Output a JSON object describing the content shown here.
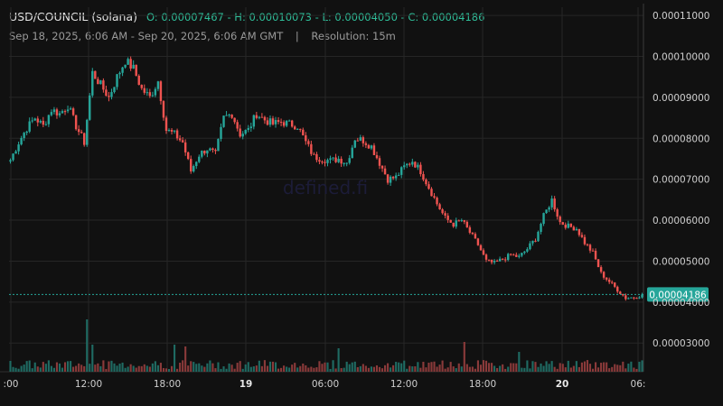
{
  "header": {
    "pair": "USD/COUNCIL (solana)",
    "ohlc": "O: 0.00007467 - H: 0.00010073 - L: 0.00004050 - C: 0.00004186",
    "range": "Sep 18, 2025, 6:06 AM - Sep 20, 2025, 6:06 AM GMT",
    "separator": "|",
    "resolution": "Resolution: 15m"
  },
  "watermark": "defined.fi",
  "colors": {
    "up": "#26a69a",
    "down": "#ef5350",
    "up_volume": "#1f6b63",
    "down_volume": "#8a3a3a",
    "last_price_badge": "#26a69a",
    "grid": "#262626",
    "background": "#111111"
  },
  "chart_data": {
    "type": "candlestick",
    "resolution": "15m",
    "last_price": 4.186e-05,
    "last_price_label": "0.00004186",
    "y_ticks": [
      "0.00011000",
      "0.00010000",
      "0.00009000",
      "0.00008000",
      "0.00007000",
      "0.00006000",
      "0.00005000",
      "0.00004000",
      "0.00003000"
    ],
    "ylim": [
      2.3e-05,
      0.000112
    ],
    "x_ticks": [
      {
        "label": ":00",
        "bold": false
      },
      {
        "label": "12:00",
        "bold": false
      },
      {
        "label": "18:00",
        "bold": false
      },
      {
        "label": "19",
        "bold": true
      },
      {
        "label": "06:00",
        "bold": false
      },
      {
        "label": "12:00",
        "bold": false
      },
      {
        "label": "18:00",
        "bold": false
      },
      {
        "label": "20",
        "bold": true
      },
      {
        "label": "06:",
        "bold": false
      }
    ],
    "price_path": [
      [
        0,
        7.47e-05
      ],
      [
        3,
        7.9e-05
      ],
      [
        6,
        8.25e-05
      ],
      [
        9,
        8.5e-05
      ],
      [
        12,
        8.3e-05
      ],
      [
        15,
        8.7e-05
      ],
      [
        18,
        8.6e-05
      ],
      [
        21,
        8.8e-05
      ],
      [
        24,
        8.3e-05
      ],
      [
        27,
        7.9e-05
      ],
      [
        30,
        9.6e-05
      ],
      [
        33,
        9.3e-05
      ],
      [
        36,
        9e-05
      ],
      [
        39,
        9.5e-05
      ],
      [
        42,
        9.9e-05
      ],
      [
        45,
        9.7e-05
      ],
      [
        48,
        9.2e-05
      ],
      [
        51,
        9e-05
      ],
      [
        54,
        9.4e-05
      ],
      [
        57,
        8.2e-05
      ],
      [
        60,
        8.1e-05
      ],
      [
        63,
        7.9e-05
      ],
      [
        66,
        7.2e-05
      ],
      [
        69,
        7.6e-05
      ],
      [
        72,
        7.75e-05
      ],
      [
        75,
        7.6e-05
      ],
      [
        78,
        8.5e-05
      ],
      [
        81,
        8.6e-05
      ],
      [
        84,
        8.1e-05
      ],
      [
        87,
        8.2e-05
      ],
      [
        90,
        8.6e-05
      ],
      [
        93,
        8.45e-05
      ],
      [
        96,
        8.35e-05
      ],
      [
        99,
        8.4e-05
      ],
      [
        102,
        8.35e-05
      ],
      [
        105,
        8.3e-05
      ],
      [
        108,
        7.9e-05
      ],
      [
        111,
        7.55e-05
      ],
      [
        114,
        7.5e-05
      ],
      [
        117,
        7.45e-05
      ],
      [
        120,
        7.5e-05
      ],
      [
        123,
        7.4e-05
      ],
      [
        126,
        8e-05
      ],
      [
        129,
        7.95e-05
      ],
      [
        132,
        7.8e-05
      ],
      [
        135,
        7.4e-05
      ],
      [
        138,
        7e-05
      ],
      [
        141,
        7.05e-05
      ],
      [
        144,
        7.3e-05
      ],
      [
        147,
        7.45e-05
      ],
      [
        150,
        7.2e-05
      ],
      [
        153,
        6.8e-05
      ],
      [
        156,
        6.4e-05
      ],
      [
        159,
        6.05e-05
      ],
      [
        162,
        5.9e-05
      ],
      [
        165,
        6e-05
      ],
      [
        168,
        5.7e-05
      ],
      [
        171,
        5.4e-05
      ],
      [
        174,
        5e-05
      ],
      [
        177,
        4.95e-05
      ],
      [
        180,
        5.05e-05
      ],
      [
        183,
        5.15e-05
      ],
      [
        186,
        5.1e-05
      ],
      [
        189,
        5.3e-05
      ],
      [
        192,
        5.55e-05
      ],
      [
        195,
        6.1e-05
      ],
      [
        198,
        6.5e-05
      ],
      [
        201,
        5.95e-05
      ],
      [
        204,
        5.85e-05
      ],
      [
        207,
        5.8e-05
      ],
      [
        210,
        5.45e-05
      ],
      [
        213,
        5.2e-05
      ],
      [
        216,
        4.7e-05
      ],
      [
        219,
        4.5e-05
      ],
      [
        222,
        4.3e-05
      ],
      [
        225,
        4.1e-05
      ],
      [
        228,
        4.12e-05
      ],
      [
        231,
        4.18e-05
      ]
    ],
    "volume_spikes": [
      [
        28,
        0.58
      ],
      [
        30,
        0.3
      ],
      [
        60,
        0.3
      ],
      [
        64,
        0.28
      ],
      [
        120,
        0.26
      ],
      [
        166,
        0.33
      ],
      [
        186,
        0.22
      ]
    ]
  }
}
